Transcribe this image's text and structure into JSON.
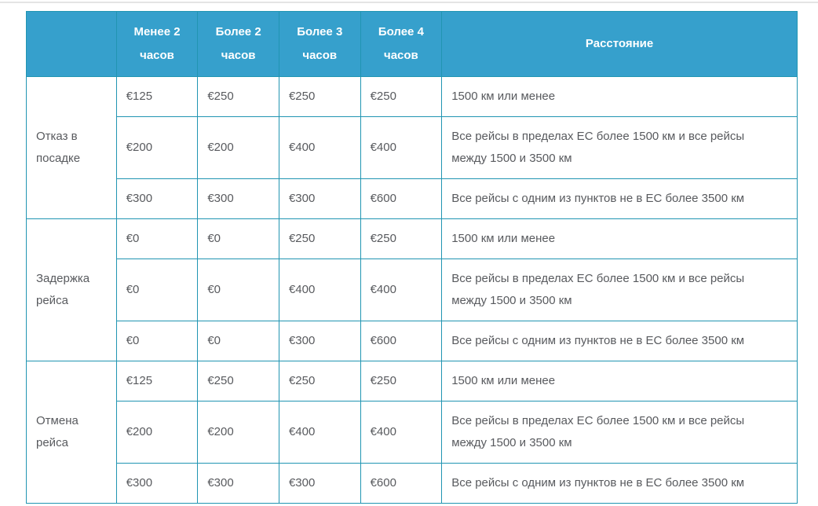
{
  "page": {
    "background_color": "#ffffff",
    "top_divider_color": "#e4e4e4"
  },
  "table": {
    "accent_color": "#36a0cc",
    "border_color": "#2195b2",
    "header_text_color": "#ffffff",
    "body_text_color": "#585a5e",
    "columns": [
      {
        "label": ""
      },
      {
        "label": "Менее 2 часов"
      },
      {
        "label": "Более 2 часов"
      },
      {
        "label": "Более 3 часов"
      },
      {
        "label": "Более 4 часов"
      },
      {
        "label": "Расстояние"
      }
    ],
    "groups": [
      {
        "label": "Отказ в посадке",
        "rows": [
          {
            "values": [
              "€125",
              "€250",
              "€250",
              "€250"
            ],
            "distance": "1500 км или менее"
          },
          {
            "values": [
              "€200",
              "€200",
              "€400",
              "€400"
            ],
            "distance": "Все рейсы в пределах ЕС более 1500 км и все рейсы между 1500 и 3500 км"
          },
          {
            "values": [
              "€300",
              "€300",
              "€300",
              "€600"
            ],
            "distance": "Все рейсы с одним из пунктов не в ЕС более 3500 км"
          }
        ]
      },
      {
        "label": "Задержка рейса",
        "rows": [
          {
            "values": [
              "€0",
              "€0",
              "€250",
              "€250"
            ],
            "distance": "1500 км или менее"
          },
          {
            "values": [
              "€0",
              "€0",
              "€400",
              "€400"
            ],
            "distance": "Все рейсы в пределах ЕС более 1500 км и все рейсы между 1500 и 3500 км"
          },
          {
            "values": [
              "€0",
              "€0",
              "€300",
              "€600"
            ],
            "distance": "Все рейсы с одним из пунктов не в ЕС более 3500 км"
          }
        ]
      },
      {
        "label": "Отмена рейса",
        "rows": [
          {
            "values": [
              "€125",
              "€250",
              "€250",
              "€250"
            ],
            "distance": "1500 км или менее"
          },
          {
            "values": [
              "€200",
              "€200",
              "€400",
              "€400"
            ],
            "distance": "Все рейсы в пределах ЕС более 1500 км и все рейсы между 1500 и 3500 км"
          },
          {
            "values": [
              "€300",
              "€300",
              "€300",
              "€600"
            ],
            "distance": "Все рейсы с одним из пунктов не в ЕС более 3500 км"
          }
        ]
      }
    ]
  }
}
